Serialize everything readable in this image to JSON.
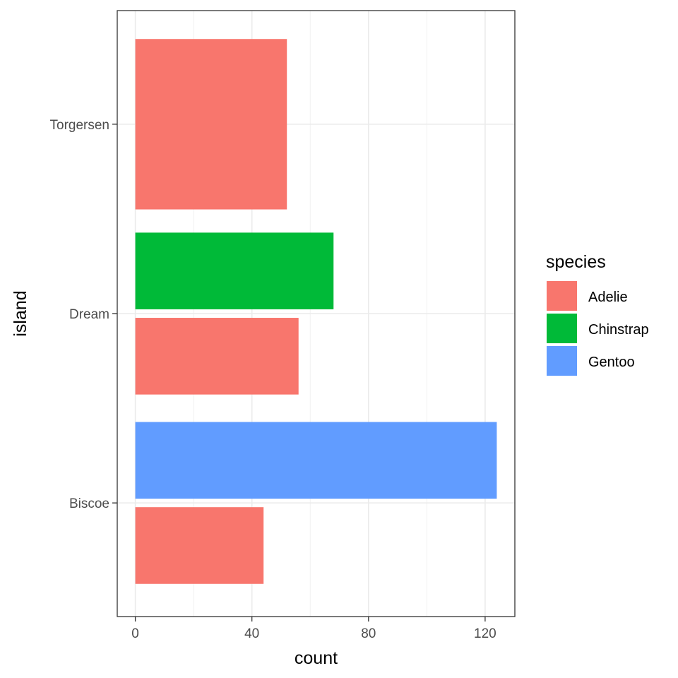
{
  "chart_data": {
    "type": "bar",
    "orientation": "horizontal",
    "position": "dodge",
    "categories": [
      "Biscoe",
      "Dream",
      "Torgersen"
    ],
    "series": [
      {
        "name": "Adelie",
        "color": "#F8766D",
        "values": [
          44,
          56,
          52
        ]
      },
      {
        "name": "Chinstrap",
        "color": "#00BA38",
        "values": [
          null,
          68,
          null
        ]
      },
      {
        "name": "Gentoo",
        "color": "#619CFF",
        "values": [
          124,
          null,
          null
        ]
      }
    ],
    "xlabel": "count",
    "ylabel": "island",
    "xlim": [
      -6.2,
      130.2
    ],
    "xticks": [
      "0",
      "40",
      "80",
      "120"
    ],
    "xtick_values": [
      0,
      40,
      80,
      120
    ],
    "minor_xtick_values": [
      20,
      60,
      100
    ],
    "grid": true,
    "theme": "bw",
    "legend": {
      "title": "species",
      "position": "right",
      "entries": [
        "Adelie",
        "Chinstrap",
        "Gentoo"
      ]
    }
  }
}
